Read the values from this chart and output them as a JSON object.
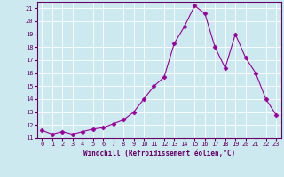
{
  "x": [
    0,
    1,
    2,
    3,
    4,
    5,
    6,
    7,
    8,
    9,
    10,
    11,
    12,
    13,
    14,
    15,
    16,
    17,
    18,
    19,
    20,
    21,
    22,
    23
  ],
  "y": [
    11.6,
    11.3,
    11.5,
    11.3,
    11.5,
    11.7,
    11.8,
    12.1,
    12.4,
    13.0,
    14.0,
    15.0,
    15.7,
    18.3,
    19.6,
    21.2,
    20.6,
    18.0,
    16.4,
    19.0,
    17.2,
    16.0,
    14.0,
    12.8
  ],
  "line_color": "#990099",
  "marker": "D",
  "marker_size": 2.5,
  "xlabel": "Windchill (Refroidissement éolien,°C)",
  "ylim": [
    11,
    21.5
  ],
  "xlim": [
    -0.5,
    23.5
  ],
  "yticks": [
    11,
    12,
    13,
    14,
    15,
    16,
    17,
    18,
    19,
    20,
    21
  ],
  "xticks": [
    0,
    1,
    2,
    3,
    4,
    5,
    6,
    7,
    8,
    9,
    10,
    11,
    12,
    13,
    14,
    15,
    16,
    17,
    18,
    19,
    20,
    21,
    22,
    23
  ],
  "bg_color": "#cce9f0",
  "grid_color": "#ffffff",
  "line_axis_color": "#660066",
  "tick_color": "#660066",
  "label_fontsize": 5,
  "xlabel_fontsize": 5.5
}
